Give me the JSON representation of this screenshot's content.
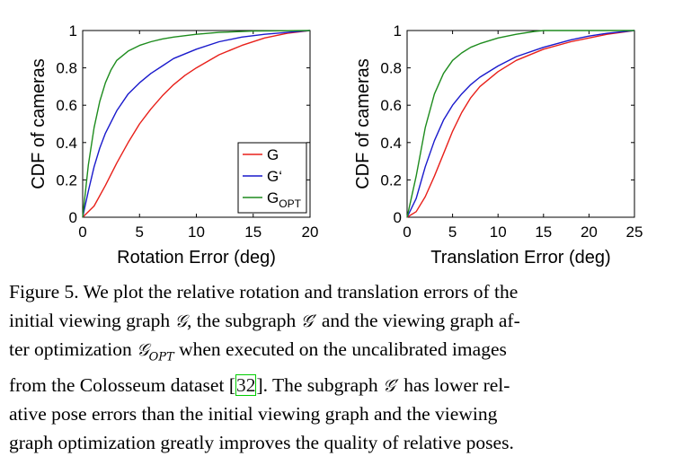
{
  "chart_data": [
    {
      "type": "line",
      "title": "",
      "xlabel": "Rotation Error (deg)",
      "ylabel": "CDF of cameras",
      "xlim": [
        0,
        20
      ],
      "ylim": [
        0,
        1
      ],
      "xticks": [
        0,
        5,
        10,
        15,
        20
      ],
      "yticks": [
        0,
        0.2,
        0.4,
        0.6,
        0.8,
        1
      ],
      "ytick_labels": [
        "0",
        "0.2",
        "0.4",
        "0.6",
        "0.8",
        "1"
      ],
      "legend_position": "bottom-right",
      "series": [
        {
          "name": "G",
          "color": "#e8201a",
          "x": [
            0,
            1,
            2,
            3,
            4,
            5,
            6,
            7,
            8,
            9,
            10,
            12,
            14,
            16,
            18,
            20
          ],
          "y": [
            0,
            0.06,
            0.17,
            0.29,
            0.4,
            0.5,
            0.58,
            0.65,
            0.71,
            0.76,
            0.8,
            0.87,
            0.92,
            0.96,
            0.985,
            1.0
          ]
        },
        {
          "name": "G'",
          "color": "#1a1acc",
          "x": [
            0,
            0.5,
            1,
            1.5,
            2,
            3,
            4,
            5,
            6,
            7,
            8,
            10,
            12,
            14,
            16,
            18,
            20
          ],
          "y": [
            0,
            0.14,
            0.27,
            0.37,
            0.45,
            0.57,
            0.66,
            0.72,
            0.77,
            0.81,
            0.85,
            0.9,
            0.94,
            0.965,
            0.98,
            0.99,
            1.0
          ]
        },
        {
          "name": "G_OPT",
          "color": "#1e8c1e",
          "x": [
            0,
            0.5,
            1,
            1.5,
            2,
            2.5,
            3,
            4,
            5,
            6,
            7,
            8,
            10,
            12,
            15,
            20
          ],
          "y": [
            0,
            0.28,
            0.48,
            0.62,
            0.72,
            0.79,
            0.84,
            0.89,
            0.92,
            0.94,
            0.955,
            0.965,
            0.98,
            0.99,
            0.997,
            1.0
          ]
        }
      ],
      "legend": [
        {
          "main": "G",
          "sub": ""
        },
        {
          "main": "G‘",
          "sub": ""
        },
        {
          "main": "G",
          "sub": "OPT"
        }
      ]
    },
    {
      "type": "line",
      "title": "",
      "xlabel": "Translation Error (deg)",
      "ylabel": "CDF of cameras",
      "xlim": [
        0,
        25
      ],
      "ylim": [
        0,
        1
      ],
      "xticks": [
        0,
        5,
        10,
        15,
        20,
        25
      ],
      "yticks": [
        0,
        0.2,
        0.4,
        0.6,
        0.8,
        1
      ],
      "ytick_labels": [
        "0",
        "0.2",
        "0.4",
        "0.6",
        "0.8",
        "1"
      ],
      "series": [
        {
          "name": "G",
          "color": "#e8201a",
          "x": [
            0,
            1,
            2,
            3,
            4,
            5,
            6,
            7,
            8,
            10,
            12,
            15,
            18,
            20,
            22,
            25
          ],
          "y": [
            0,
            0.03,
            0.11,
            0.22,
            0.34,
            0.46,
            0.56,
            0.64,
            0.7,
            0.78,
            0.84,
            0.9,
            0.94,
            0.96,
            0.98,
            1.0
          ]
        },
        {
          "name": "G'",
          "color": "#1a1acc",
          "x": [
            0,
            1,
            2,
            3,
            4,
            5,
            6,
            7,
            8,
            10,
            12,
            15,
            18,
            20,
            22,
            25
          ],
          "y": [
            0,
            0.1,
            0.27,
            0.41,
            0.52,
            0.6,
            0.66,
            0.71,
            0.75,
            0.81,
            0.86,
            0.91,
            0.95,
            0.97,
            0.985,
            1.0
          ]
        },
        {
          "name": "G_OPT",
          "color": "#1e8c1e",
          "x": [
            0,
            1,
            2,
            3,
            4,
            5,
            6,
            7,
            8,
            10,
            12,
            14,
            15,
            16,
            20,
            25
          ],
          "y": [
            0,
            0.22,
            0.48,
            0.66,
            0.77,
            0.84,
            0.88,
            0.91,
            0.93,
            0.96,
            0.98,
            0.995,
            1.0,
            1.0,
            1.0,
            1.0
          ]
        }
      ]
    }
  ],
  "caption": {
    "lines": [
      [
        {
          "t": "text",
          "v": "Figure 5.  We plot the relative rotation and translation errors of the"
        }
      ],
      [
        {
          "t": "text",
          "v": "initial viewing graph "
        },
        {
          "t": "math",
          "v": "𝒢"
        },
        {
          "t": "text",
          "v": ", the subgraph "
        },
        {
          "t": "math",
          "v": "𝒢′"
        },
        {
          "t": "text",
          "v": " and the viewing graph af-"
        }
      ],
      [
        {
          "t": "text",
          "v": "ter optimization "
        },
        {
          "t": "math",
          "v": "𝒢",
          "sub": "OPT"
        },
        {
          "t": "text",
          "v": " when executed on the uncalibrated images"
        }
      ],
      [
        {
          "t": "text",
          "v": "from the Colosseum dataset  ["
        },
        {
          "t": "cite",
          "v": "32"
        },
        {
          "t": "text",
          "v": "]. The subgraph "
        },
        {
          "t": "math",
          "v": "𝒢′"
        },
        {
          "t": "text",
          "v": " has lower rel-"
        }
      ],
      [
        {
          "t": "text",
          "v": "ative pose errors than the initial viewing graph and the viewing"
        }
      ],
      [
        {
          "t": "text",
          "v": "graph optimization greatly improves the quality of relative poses."
        }
      ]
    ]
  }
}
